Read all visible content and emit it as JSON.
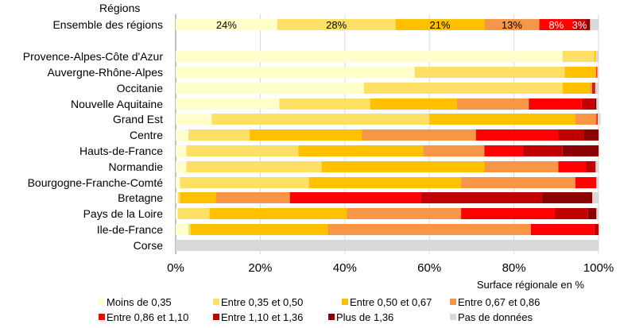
{
  "chart_data": {
    "type": "bar",
    "orientation": "horizontal",
    "stacked": "percent",
    "title": "",
    "ylabel": "Régions",
    "xlabel": "Surface régionale en %",
    "xlim": [
      0,
      100
    ],
    "x_ticks": [
      "0%",
      "20%",
      "40%",
      "60%",
      "80%",
      "100%"
    ],
    "grid": "vertical",
    "legend_position": "bottom",
    "categories": [
      "Ensemble des régions",
      "Provence-Alpes-Côte d'Azur",
      "Auvergne-Rhône-Alpes",
      "Occitanie",
      "Nouvelle Aquitaine",
      "Grand Est",
      "Centre",
      "Hauts-de-France",
      "Normandie",
      "Bourgogne-Franche-Comté",
      "Bretagne",
      "Pays de la Loire",
      "Ile-de-France",
      "Corse"
    ],
    "series": [
      {
        "name": "Moins de 0,35",
        "color": "#ffffcc",
        "values": [
          24,
          91.5,
          56.5,
          44.5,
          24.5,
          8.5,
          3,
          2.5,
          2.5,
          1,
          0.5,
          0.5,
          3,
          0
        ]
      },
      {
        "name": "Entre 0,35 et 0,50",
        "color": "#ffe066",
        "values": [
          28,
          7.5,
          35.5,
          47,
          21.5,
          51.5,
          14.5,
          26.5,
          32,
          30.5,
          0.5,
          7.5,
          0.5,
          0
        ]
      },
      {
        "name": "Entre 0,50 et 0,67",
        "color": "#ffc000",
        "values": [
          21,
          0.3,
          7.3,
          6.5,
          20.5,
          34.5,
          26.5,
          29.5,
          38.5,
          36,
          8.5,
          32.5,
          32.5,
          0
        ]
      },
      {
        "name": "Entre 0,67 et 0,86",
        "color": "#f79646",
        "values": [
          13,
          0,
          0.2,
          0.5,
          17,
          5,
          27,
          14.5,
          17.5,
          27,
          17.5,
          27,
          48,
          0
        ]
      },
      {
        "name": "Entre 0,86 et 1,10",
        "color": "#ff0000",
        "values": [
          8,
          0,
          0.2,
          0.3,
          12.5,
          0.2,
          19.5,
          9,
          6.5,
          5,
          31,
          22,
          15,
          0
        ]
      },
      {
        "name": "Entre 1,10 et 1,36",
        "color": "#c00000",
        "values": [
          3,
          0,
          0,
          0.2,
          3,
          0.1,
          6,
          9.5,
          2,
          0,
          28.5,
          8,
          1,
          0
        ]
      },
      {
        "name": "Plus de 1,36",
        "color": "#8b0000",
        "values": [
          1,
          0,
          0,
          0.2,
          0.5,
          0,
          3.5,
          8.5,
          0.3,
          0,
          12,
          2,
          0,
          0
        ]
      },
      {
        "name": "Pas de données",
        "color": "#d9d9d9",
        "values": [
          2,
          0.7,
          0.3,
          0.8,
          0.5,
          0.7,
          0,
          0,
          0.7,
          0.5,
          1.5,
          0.5,
          0,
          100
        ]
      }
    ],
    "data_labels": [
      {
        "category": "Ensemble des régions",
        "series": "Moins de 0,35",
        "text": "24%"
      },
      {
        "category": "Ensemble des régions",
        "series": "Entre 0,35 et 0,50",
        "text": "28%"
      },
      {
        "category": "Ensemble des régions",
        "series": "Entre 0,50 et 0,67",
        "text": "21%"
      },
      {
        "category": "Ensemble des régions",
        "series": "Entre 0,67 et 0,86",
        "text": "13%"
      },
      {
        "category": "Ensemble des régions",
        "series": "Entre 0,86 et 1,10",
        "text": "8%"
      },
      {
        "category": "Ensemble des régions",
        "series": "Entre 1,10 et 1,36",
        "text": "3%"
      }
    ]
  }
}
